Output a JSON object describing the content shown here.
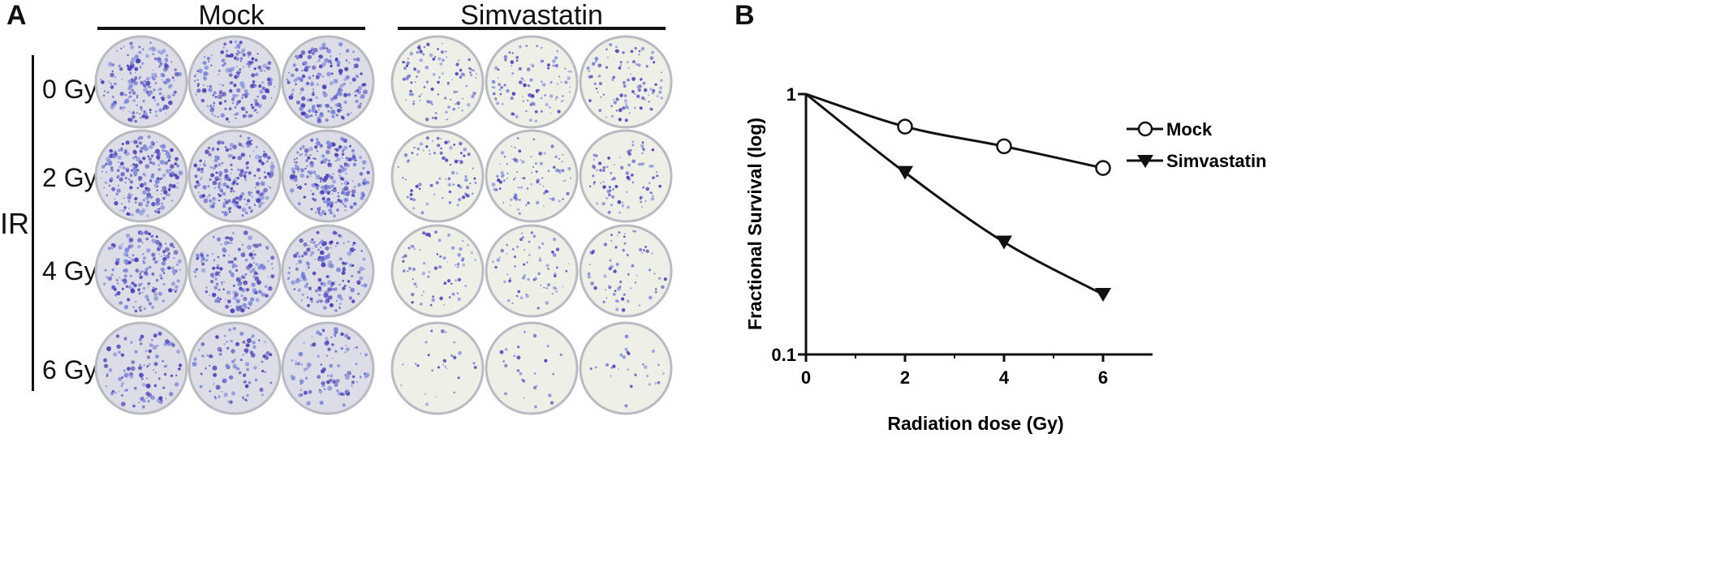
{
  "panel_a": {
    "letter": "A",
    "groups": [
      {
        "label": "Mock"
      },
      {
        "label": "Simvastatin"
      }
    ],
    "ir_label": "IR",
    "row_labels": [
      "0 Gy",
      "2 Gy",
      "4 Gy",
      "6 Gy"
    ],
    "colors": {
      "mock_dish_bg": "#dcdde6",
      "simva_dish_bg": "#eef0e8",
      "colony": "#4a3fb5",
      "colony_light": "#7a86d8",
      "dish_rim": "#b9bbc2"
    },
    "colony_density": {
      "mock": [
        {
          "dose": "0 Gy",
          "level": 0.85
        },
        {
          "dose": "2 Gy",
          "level": 1.0
        },
        {
          "dose": "4 Gy",
          "level": 0.75
        },
        {
          "dose": "6 Gy",
          "level": 0.45
        }
      ],
      "simvastatin": [
        {
          "dose": "0 Gy",
          "level": 0.45
        },
        {
          "dose": "2 Gy",
          "level": 0.4
        },
        {
          "dose": "4 Gy",
          "level": 0.3
        },
        {
          "dose": "6 Gy",
          "level": 0.12
        }
      ]
    }
  },
  "panel_b": {
    "letter": "B",
    "chart_data": {
      "type": "line",
      "title": "",
      "xlabel": "Radiation dose (Gy)",
      "ylabel": "Fractional Survival (log)",
      "x_scale": "linear",
      "y_scale": "log",
      "xlim": [
        0,
        7
      ],
      "ylim": [
        0.1,
        1
      ],
      "x_ticks": [
        "0",
        "2",
        "4",
        "6"
      ],
      "x_tick_values": [
        0,
        2,
        4,
        6
      ],
      "y_ticks": [
        "0.1",
        "1"
      ],
      "y_tick_values": [
        0.1,
        1
      ],
      "grid": false,
      "legend_position": "top-right",
      "series": [
        {
          "name": "Mock",
          "marker": "open-circle",
          "x": [
            0,
            2,
            4,
            6
          ],
          "y": [
            1.0,
            0.75,
            0.63,
            0.52
          ]
        },
        {
          "name": "Simvastatin",
          "marker": "filled-down-triangle",
          "x": [
            0,
            2,
            4,
            6
          ],
          "y": [
            1.0,
            0.5,
            0.27,
            0.17
          ]
        }
      ]
    }
  }
}
